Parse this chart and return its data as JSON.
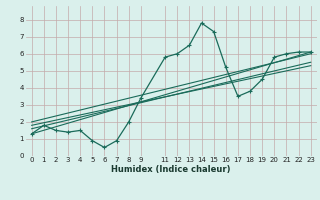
{
  "background_color": "#daf0ec",
  "grid_color": "#c4aaaa",
  "line_color": "#1a6b5a",
  "xlabel": "Humidex (Indice chaleur)",
  "xlim": [
    -0.5,
    23.5
  ],
  "ylim": [
    0,
    8.8
  ],
  "xticks": [
    0,
    1,
    2,
    3,
    4,
    5,
    6,
    7,
    8,
    9,
    11,
    12,
    13,
    14,
    15,
    16,
    17,
    18,
    19,
    20,
    21,
    22,
    23
  ],
  "yticks": [
    0,
    1,
    2,
    3,
    4,
    5,
    6,
    7,
    8
  ],
  "zigzag": {
    "x": [
      0,
      1,
      2,
      3,
      4,
      5,
      6,
      7,
      8,
      9,
      11,
      12,
      13,
      14,
      15,
      16,
      17,
      18,
      19,
      20,
      21,
      22,
      23
    ],
    "y": [
      1.3,
      1.8,
      1.5,
      1.4,
      1.5,
      0.9,
      0.5,
      0.9,
      2.0,
      3.4,
      5.8,
      6.0,
      6.5,
      7.8,
      7.3,
      5.2,
      3.5,
      3.8,
      4.5,
      5.8,
      6.0,
      6.1,
      6.1
    ]
  },
  "linear_lines": [
    {
      "x0": 0,
      "y0": 1.3,
      "x1": 23,
      "y1": 6.1
    },
    {
      "x0": 0,
      "y0": 1.6,
      "x1": 23,
      "y1": 5.5
    },
    {
      "x0": 0,
      "y0": 1.8,
      "x1": 23,
      "y1": 5.3
    },
    {
      "x0": 0,
      "y0": 2.0,
      "x1": 23,
      "y1": 6.0
    }
  ]
}
